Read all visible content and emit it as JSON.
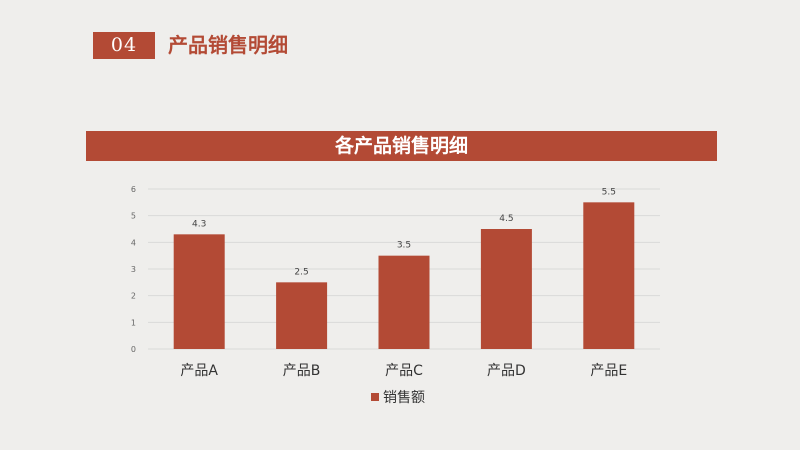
{
  "header": {
    "section_number": "04",
    "section_title": "产品销售明细"
  },
  "colors": {
    "accent": "#b34a35",
    "background": "#efeeec",
    "gridline": "#d9d9d9"
  },
  "chart_data": {
    "type": "bar",
    "title": "各产品销售明细",
    "categories": [
      "产品A",
      "产品B",
      "产品C",
      "产品D",
      "产品E"
    ],
    "series": [
      {
        "name": "销售额",
        "values": [
          4.3,
          2.5,
          3.5,
          4.5,
          5.5
        ]
      }
    ],
    "data_labels": [
      "4.3",
      "2.5",
      "3.5",
      "4.5",
      "5.5"
    ],
    "yticks": [
      "0",
      "1",
      "2",
      "3",
      "4",
      "5",
      "6"
    ],
    "ylim": [
      0,
      6
    ],
    "grid": true,
    "legend_position": "bottom"
  }
}
